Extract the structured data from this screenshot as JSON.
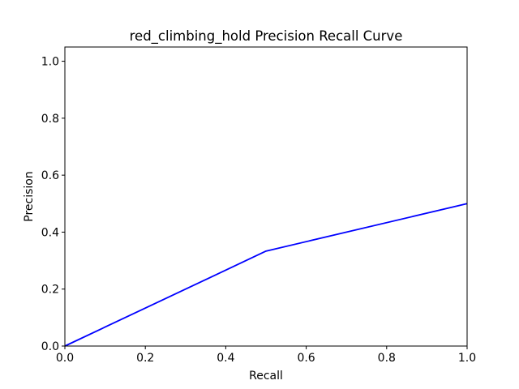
{
  "chart_data": {
    "type": "line",
    "title": "red_climbing_hold Precision Recall Curve",
    "xlabel": "Recall",
    "ylabel": "Precision",
    "xlim": [
      0.0,
      1.0
    ],
    "ylim": [
      0.0,
      1.05
    ],
    "xticks": [
      "0.0",
      "0.2",
      "0.4",
      "0.6",
      "0.8",
      "1.0"
    ],
    "yticks": [
      "0.0",
      "0.2",
      "0.4",
      "0.6",
      "0.8",
      "1.0"
    ],
    "grid": false,
    "series": [
      {
        "color": "#0000ff",
        "x": [
          0.0,
          0.5,
          1.0
        ],
        "y": [
          0.0,
          0.3333,
          0.5
        ]
      }
    ]
  }
}
